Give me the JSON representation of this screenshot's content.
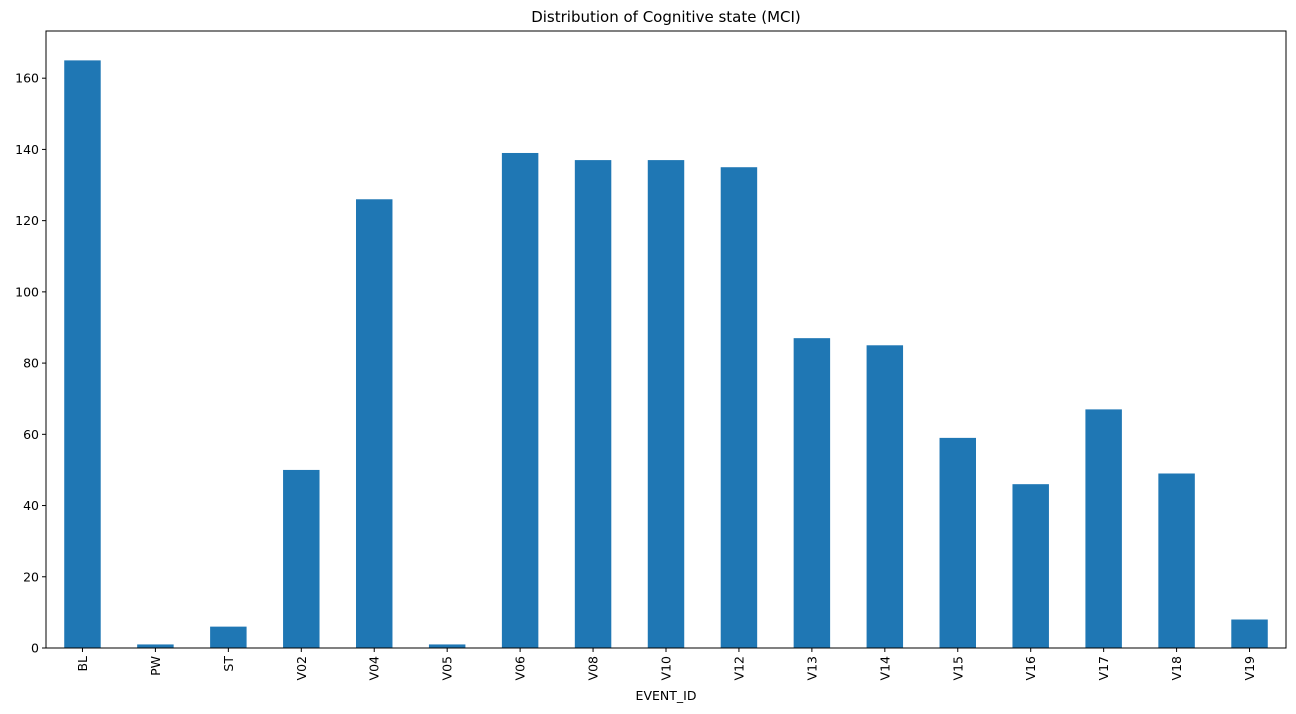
{
  "chart_data": {
    "type": "bar",
    "title": "Distribution of Cognitive state (MCI)",
    "xlabel": "EVENT_ID",
    "ylabel": "",
    "categories": [
      "BL",
      "PW",
      "ST",
      "V02",
      "V04",
      "V05",
      "V06",
      "V08",
      "V10",
      "V12",
      "V13",
      "V14",
      "V15",
      "V16",
      "V17",
      "V18",
      "V19"
    ],
    "values": [
      165,
      1,
      6,
      50,
      126,
      1,
      139,
      137,
      137,
      135,
      87,
      85,
      59,
      46,
      67,
      49,
      8
    ],
    "ylim": [
      0,
      173.25
    ],
    "yticks": [
      0,
      20,
      40,
      60,
      80,
      100,
      120,
      140,
      160
    ],
    "bar_color": "#1f77b4",
    "grid": false,
    "legend": "none"
  }
}
